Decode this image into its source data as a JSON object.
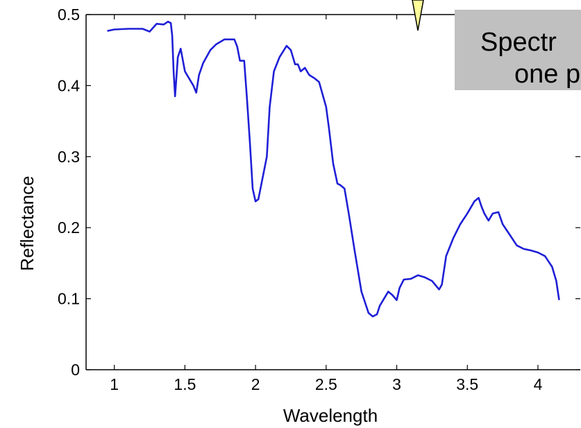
{
  "callout": {
    "line1": "Spectr",
    "line2": "one p"
  },
  "chart_data": {
    "type": "line",
    "title": "",
    "xlabel": "Wavelength",
    "ylabel": "Reflectance",
    "xlim": [
      0.8,
      4.3
    ],
    "ylim": [
      0,
      0.5
    ],
    "xticks": [
      1,
      1.5,
      2,
      2.5,
      3,
      3.5,
      4
    ],
    "xtick_labels": [
      "1",
      "1.5",
      "2",
      "2.5",
      "3",
      "3.5",
      "4"
    ],
    "yticks": [
      0,
      0.1,
      0.2,
      0.3,
      0.4,
      0.5
    ],
    "ytick_labels": [
      "0",
      "0.1",
      "0.2",
      "0.3",
      "0.4",
      "0.5"
    ],
    "grid": false,
    "line_color": "#1f1fd6",
    "series": [
      {
        "x": [
          0.95,
          1.0,
          1.1,
          1.2,
          1.25,
          1.3,
          1.35,
          1.38,
          1.4,
          1.41,
          1.42,
          1.43,
          1.45,
          1.47,
          1.5,
          1.53,
          1.56,
          1.58,
          1.6,
          1.63,
          1.68,
          1.72,
          1.78,
          1.85,
          1.87,
          1.89,
          1.92,
          1.94,
          1.96,
          1.98,
          2.0,
          2.02,
          2.05,
          2.08,
          2.1,
          2.13,
          2.17,
          2.22,
          2.25,
          2.28,
          2.3,
          2.32,
          2.35,
          2.38,
          2.42,
          2.45,
          2.5,
          2.52,
          2.55,
          2.58,
          2.6,
          2.63,
          2.66,
          2.7,
          2.75,
          2.8,
          2.83,
          2.86,
          2.88,
          2.91,
          2.94,
          2.97,
          3.0,
          3.02,
          3.05,
          3.1,
          3.15,
          3.2,
          3.25,
          3.3,
          3.32,
          3.35,
          3.4,
          3.45,
          3.5,
          3.55,
          3.58,
          3.6,
          3.62,
          3.65,
          3.68,
          3.72,
          3.75,
          3.8,
          3.85,
          3.9,
          3.95,
          4.0,
          4.05,
          4.1,
          4.13,
          4.15
        ],
        "y": [
          0.477,
          0.479,
          0.48,
          0.48,
          0.476,
          0.487,
          0.486,
          0.49,
          0.488,
          0.47,
          0.42,
          0.385,
          0.44,
          0.452,
          0.42,
          0.41,
          0.4,
          0.39,
          0.415,
          0.432,
          0.45,
          0.458,
          0.465,
          0.465,
          0.455,
          0.435,
          0.435,
          0.38,
          0.32,
          0.255,
          0.237,
          0.24,
          0.27,
          0.3,
          0.37,
          0.42,
          0.44,
          0.456,
          0.45,
          0.43,
          0.43,
          0.42,
          0.425,
          0.415,
          0.41,
          0.405,
          0.37,
          0.34,
          0.29,
          0.262,
          0.26,
          0.255,
          0.22,
          0.17,
          0.11,
          0.08,
          0.075,
          0.078,
          0.09,
          0.1,
          0.11,
          0.105,
          0.098,
          0.115,
          0.127,
          0.128,
          0.133,
          0.13,
          0.125,
          0.113,
          0.12,
          0.16,
          0.185,
          0.205,
          0.22,
          0.237,
          0.242,
          0.23,
          0.22,
          0.21,
          0.22,
          0.222,
          0.205,
          0.19,
          0.175,
          0.17,
          0.168,
          0.165,
          0.16,
          0.145,
          0.125,
          0.098
        ]
      }
    ]
  }
}
